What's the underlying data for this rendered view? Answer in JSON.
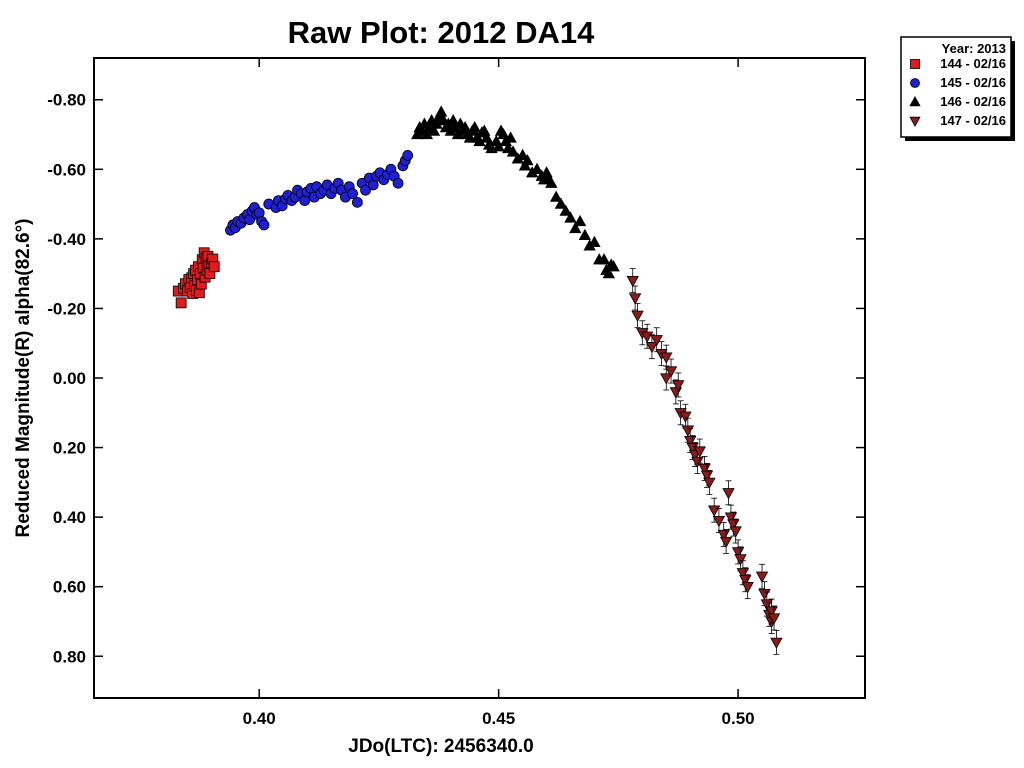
{
  "chart_data": {
    "type": "scatter",
    "title": "Raw Plot: 2012 DA14",
    "xlabel": "JDo(LTC): 2456340.0",
    "ylabel": "Reduced Magnitude(R) alpha(82.6°)",
    "xlim": [
      0.3655,
      0.5265
    ],
    "ylim": [
      0.92,
      -0.92
    ],
    "y_inverted": true,
    "x_ticks": [
      0.4,
      0.45,
      0.5
    ],
    "x_tick_labels": [
      "0.40",
      "0.45",
      "0.50"
    ],
    "y_ticks": [
      -0.8,
      -0.6,
      -0.4,
      -0.2,
      0.0,
      0.2,
      0.4,
      0.6,
      0.8
    ],
    "y_tick_labels": [
      "-0.80",
      "-0.60",
      "-0.40",
      "-0.20",
      "0.00",
      "0.20",
      "0.40",
      "0.60",
      "0.80"
    ],
    "grid": false,
    "legend": {
      "placement": "outside-top-right",
      "title": "Year: 2013",
      "entries": [
        "144 - 02/16",
        "145 - 02/16",
        "146 - 02/16",
        "147 - 02/16"
      ]
    },
    "series": [
      {
        "name": "144 - 02/16",
        "marker": "square",
        "color": "#e31a1c",
        "points": [
          [
            0.3831,
            -0.25
          ],
          [
            0.3837,
            -0.216
          ],
          [
            0.3842,
            -0.258
          ],
          [
            0.3846,
            -0.271
          ],
          [
            0.385,
            -0.25
          ],
          [
            0.3853,
            -0.283
          ],
          [
            0.3856,
            -0.26
          ],
          [
            0.3859,
            -0.288
          ],
          [
            0.3861,
            -0.243
          ],
          [
            0.3863,
            -0.3
          ],
          [
            0.3865,
            -0.265
          ],
          [
            0.3867,
            -0.31
          ],
          [
            0.3869,
            -0.252
          ],
          [
            0.3871,
            -0.282
          ],
          [
            0.3873,
            -0.32
          ],
          [
            0.3875,
            -0.245
          ],
          [
            0.3877,
            -0.3
          ],
          [
            0.3879,
            -0.27
          ],
          [
            0.3881,
            -0.34
          ],
          [
            0.3883,
            -0.316
          ],
          [
            0.3885,
            -0.36
          ],
          [
            0.3887,
            -0.29
          ],
          [
            0.3889,
            -0.345
          ],
          [
            0.3891,
            -0.31
          ],
          [
            0.3893,
            -0.35
          ],
          [
            0.3895,
            -0.322
          ],
          [
            0.3897,
            -0.3
          ],
          [
            0.39,
            -0.331
          ],
          [
            0.3903,
            -0.342
          ],
          [
            0.3906,
            -0.32
          ]
        ]
      },
      {
        "name": "145 - 02/16",
        "marker": "circle",
        "color": "#1f1fd6",
        "points": [
          [
            0.394,
            -0.425
          ],
          [
            0.3945,
            -0.44
          ],
          [
            0.395,
            -0.432
          ],
          [
            0.3955,
            -0.45
          ],
          [
            0.3962,
            -0.445
          ],
          [
            0.3968,
            -0.46
          ],
          [
            0.3975,
            -0.47
          ],
          [
            0.398,
            -0.455
          ],
          [
            0.3985,
            -0.48
          ],
          [
            0.399,
            -0.49
          ],
          [
            0.3995,
            -0.47
          ],
          [
            0.4,
            -0.475
          ],
          [
            0.4005,
            -0.45
          ],
          [
            0.401,
            -0.44
          ],
          [
            0.402,
            -0.5
          ],
          [
            0.4035,
            -0.49
          ],
          [
            0.404,
            -0.51
          ],
          [
            0.4048,
            -0.495
          ],
          [
            0.4055,
            -0.515
          ],
          [
            0.406,
            -0.525
          ],
          [
            0.4068,
            -0.51
          ],
          [
            0.4075,
            -0.52
          ],
          [
            0.408,
            -0.54
          ],
          [
            0.4088,
            -0.53
          ],
          [
            0.4095,
            -0.51
          ],
          [
            0.41,
            -0.535
          ],
          [
            0.4108,
            -0.545
          ],
          [
            0.4115,
            -0.52
          ],
          [
            0.412,
            -0.55
          ],
          [
            0.4128,
            -0.53
          ],
          [
            0.4135,
            -0.54
          ],
          [
            0.4142,
            -0.555
          ],
          [
            0.415,
            -0.53
          ],
          [
            0.4158,
            -0.545
          ],
          [
            0.4165,
            -0.56
          ],
          [
            0.4172,
            -0.54
          ],
          [
            0.418,
            -0.52
          ],
          [
            0.4188,
            -0.55
          ],
          [
            0.4195,
            -0.53
          ],
          [
            0.4205,
            -0.505
          ],
          [
            0.4215,
            -0.56
          ],
          [
            0.4222,
            -0.54
          ],
          [
            0.423,
            -0.575
          ],
          [
            0.4238,
            -0.555
          ],
          [
            0.4245,
            -0.58
          ],
          [
            0.4252,
            -0.59
          ],
          [
            0.426,
            -0.57
          ],
          [
            0.4268,
            -0.585
          ],
          [
            0.4275,
            -0.6
          ],
          [
            0.4282,
            -0.58
          ],
          [
            0.429,
            -0.56
          ],
          [
            0.43,
            -0.61
          ],
          [
            0.4305,
            -0.625
          ],
          [
            0.431,
            -0.64
          ]
        ]
      },
      {
        "name": "146 - 02/16",
        "marker": "triangle-up",
        "color": "#000000",
        "points": [
          [
            0.433,
            -0.7
          ],
          [
            0.4335,
            -0.72
          ],
          [
            0.434,
            -0.71
          ],
          [
            0.4345,
            -0.73
          ],
          [
            0.435,
            -0.7
          ],
          [
            0.4355,
            -0.72
          ],
          [
            0.436,
            -0.74
          ],
          [
            0.4365,
            -0.71
          ],
          [
            0.437,
            -0.73
          ],
          [
            0.4375,
            -0.75
          ],
          [
            0.438,
            -0.765
          ],
          [
            0.4385,
            -0.74
          ],
          [
            0.439,
            -0.72
          ],
          [
            0.4395,
            -0.73
          ],
          [
            0.44,
            -0.71
          ],
          [
            0.4405,
            -0.74
          ],
          [
            0.441,
            -0.72
          ],
          [
            0.4415,
            -0.7
          ],
          [
            0.442,
            -0.73
          ],
          [
            0.4425,
            -0.71
          ],
          [
            0.443,
            -0.72
          ],
          [
            0.4435,
            -0.7
          ],
          [
            0.444,
            -0.69
          ],
          [
            0.4445,
            -0.71
          ],
          [
            0.445,
            -0.72
          ],
          [
            0.4455,
            -0.69
          ],
          [
            0.446,
            -0.68
          ],
          [
            0.4465,
            -0.705
          ],
          [
            0.447,
            -0.71
          ],
          [
            0.4475,
            -0.69
          ],
          [
            0.448,
            -0.67
          ],
          [
            0.4485,
            -0.66
          ],
          [
            0.4495,
            -0.68
          ],
          [
            0.45,
            -0.665
          ],
          [
            0.4505,
            -0.71
          ],
          [
            0.451,
            -0.7
          ],
          [
            0.4515,
            -0.68
          ],
          [
            0.452,
            -0.66
          ],
          [
            0.4525,
            -0.69
          ],
          [
            0.453,
            -0.65
          ],
          [
            0.454,
            -0.63
          ],
          [
            0.455,
            -0.64
          ],
          [
            0.4555,
            -0.61
          ],
          [
            0.456,
            -0.625
          ],
          [
            0.457,
            -0.59
          ],
          [
            0.458,
            -0.6
          ],
          [
            0.459,
            -0.58
          ],
          [
            0.4595,
            -0.57
          ],
          [
            0.46,
            -0.59
          ],
          [
            0.4605,
            -0.57
          ],
          [
            0.461,
            -0.56
          ],
          [
            0.462,
            -0.52
          ],
          [
            0.463,
            -0.5
          ],
          [
            0.464,
            -0.48
          ],
          [
            0.465,
            -0.46
          ],
          [
            0.466,
            -0.43
          ],
          [
            0.467,
            -0.45
          ],
          [
            0.468,
            -0.41
          ],
          [
            0.469,
            -0.38
          ],
          [
            0.47,
            -0.39
          ],
          [
            0.471,
            -0.34
          ],
          [
            0.472,
            -0.34
          ],
          [
            0.4725,
            -0.31
          ],
          [
            0.473,
            -0.3
          ],
          [
            0.4735,
            -0.325
          ],
          [
            0.474,
            -0.32
          ]
        ]
      },
      {
        "name": "147 - 02/16",
        "marker": "triangle-down",
        "color": "#8b1a1a",
        "error_bars": true,
        "points": [
          [
            0.478,
            -0.28
          ],
          [
            0.4785,
            -0.23
          ],
          [
            0.479,
            -0.18
          ],
          [
            0.48,
            -0.13
          ],
          [
            0.481,
            -0.12
          ],
          [
            0.482,
            -0.09
          ],
          [
            0.483,
            -0.11
          ],
          [
            0.484,
            -0.07
          ],
          [
            0.485,
            -0.06
          ],
          [
            0.485,
            0.0
          ],
          [
            0.486,
            -0.02
          ],
          [
            0.487,
            0.04
          ],
          [
            0.4875,
            0.02
          ],
          [
            0.488,
            0.1
          ],
          [
            0.489,
            0.11
          ],
          [
            0.4895,
            0.15
          ],
          [
            0.49,
            0.18
          ],
          [
            0.4905,
            0.2
          ],
          [
            0.491,
            0.22
          ],
          [
            0.4915,
            0.24
          ],
          [
            0.492,
            0.21
          ],
          [
            0.493,
            0.26
          ],
          [
            0.4935,
            0.28
          ],
          [
            0.494,
            0.3
          ],
          [
            0.495,
            0.38
          ],
          [
            0.496,
            0.41
          ],
          [
            0.497,
            0.45
          ],
          [
            0.4975,
            0.47
          ],
          [
            0.498,
            0.33
          ],
          [
            0.4985,
            0.4
          ],
          [
            0.499,
            0.42
          ],
          [
            0.4995,
            0.44
          ],
          [
            0.5,
            0.5
          ],
          [
            0.5005,
            0.52
          ],
          [
            0.501,
            0.56
          ],
          [
            0.5015,
            0.58
          ],
          [
            0.502,
            0.6
          ],
          [
            0.505,
            0.57
          ],
          [
            0.5055,
            0.62
          ],
          [
            0.506,
            0.65
          ],
          [
            0.5065,
            0.68
          ],
          [
            0.507,
            0.7
          ],
          [
            0.507,
            0.67
          ],
          [
            0.5075,
            0.69
          ],
          [
            0.508,
            0.76
          ]
        ]
      }
    ]
  }
}
